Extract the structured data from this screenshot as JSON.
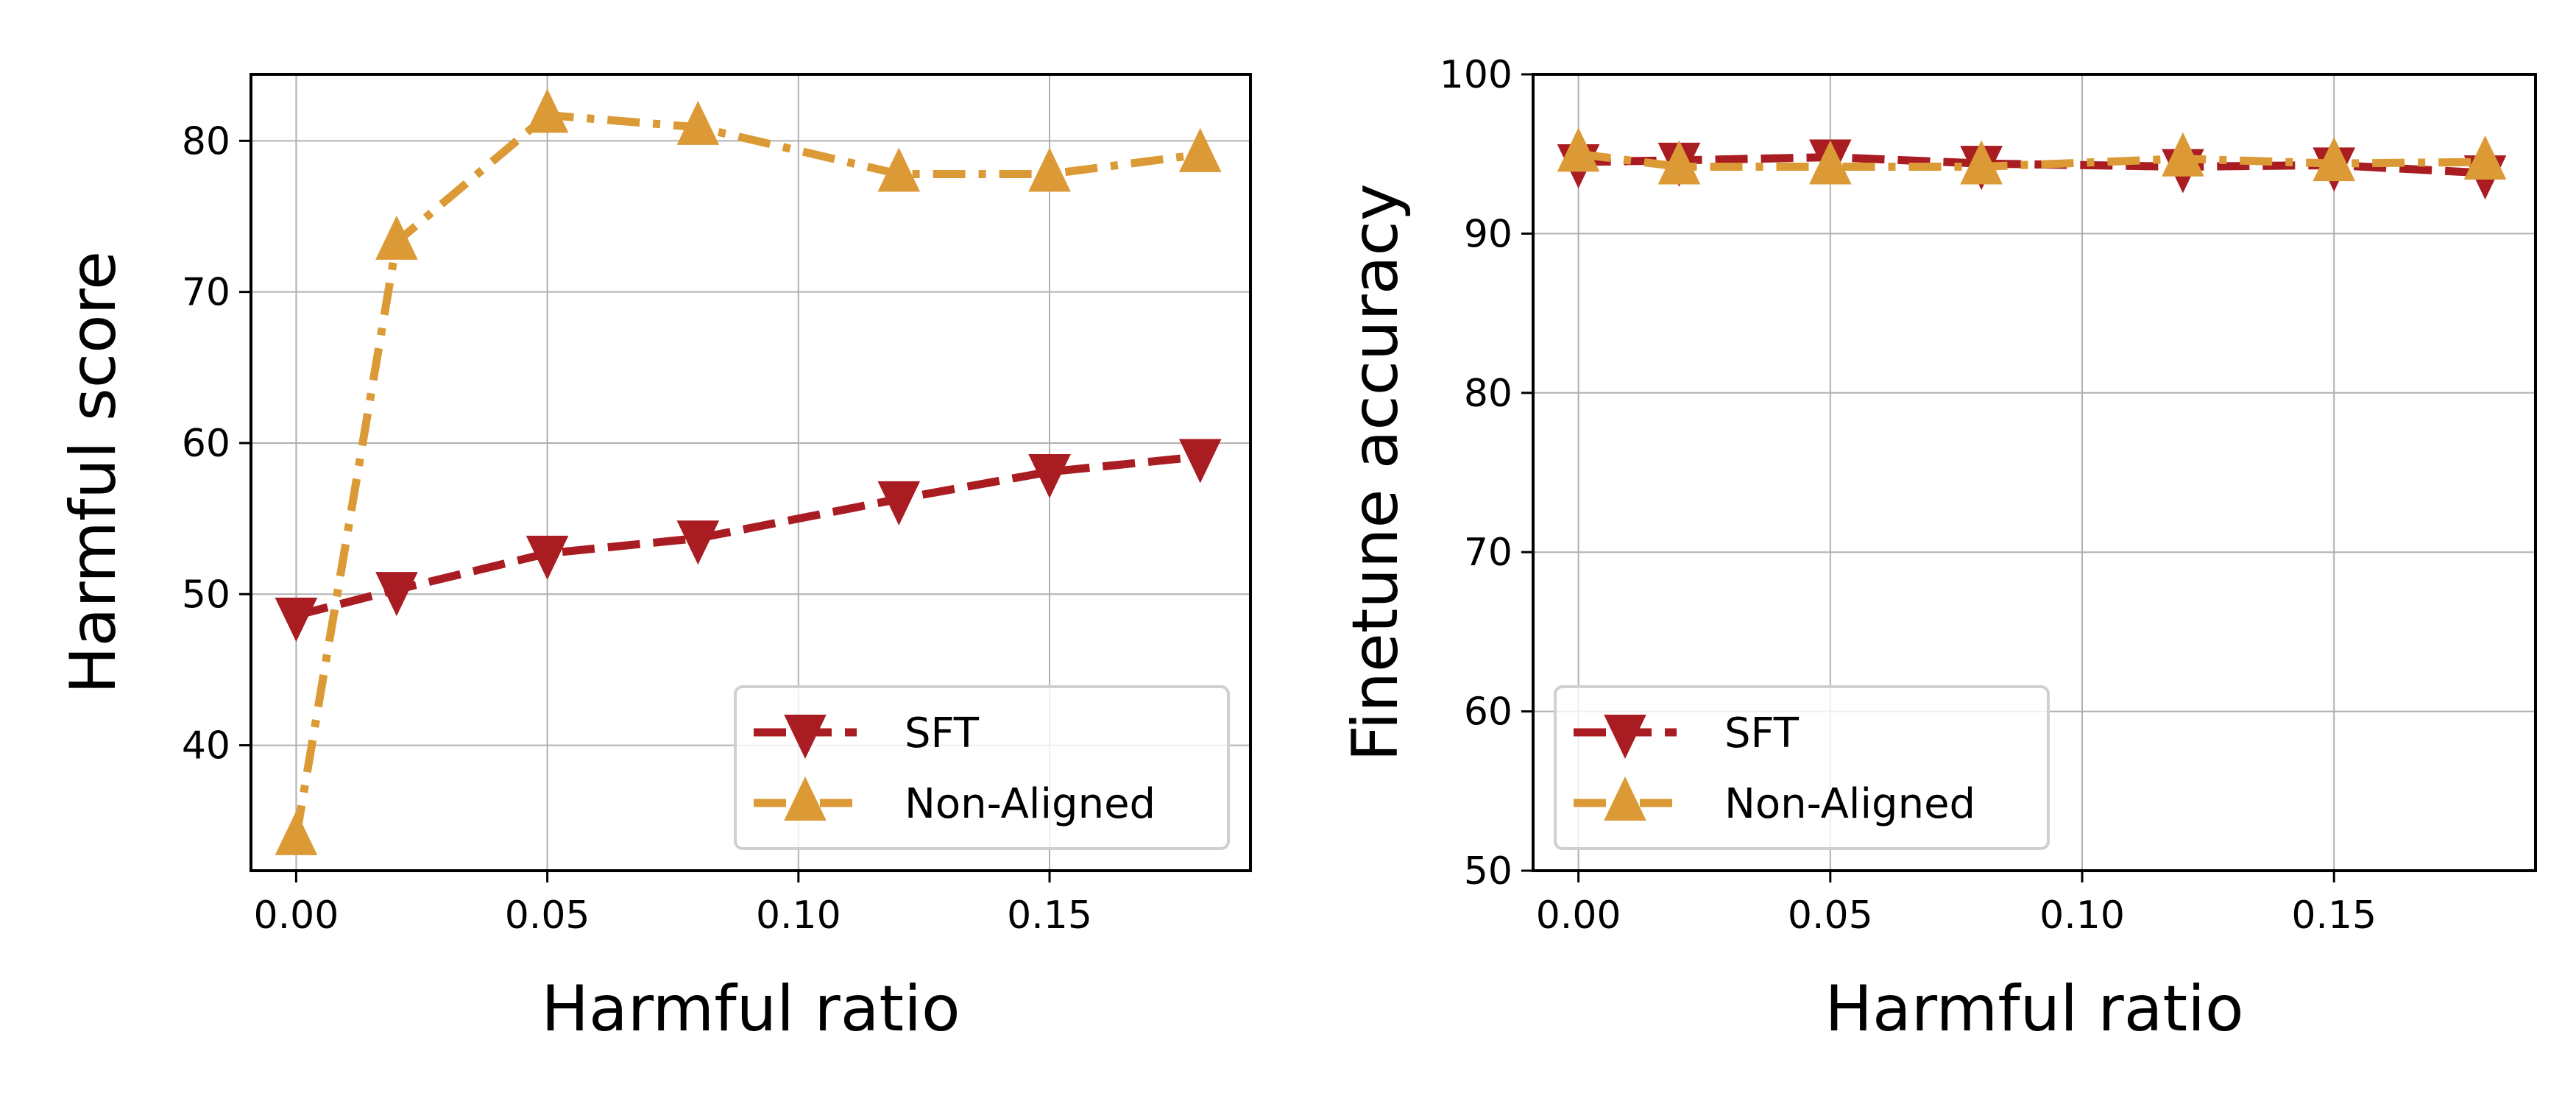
{
  "chart_data": [
    {
      "type": "line",
      "xlabel": "Harmful ratio",
      "ylabel": "Harmful score",
      "xlim": [
        -0.009,
        0.19
      ],
      "ylim": [
        31.7,
        84.4
      ],
      "xticks": [
        "0.00",
        "0.05",
        "0.10",
        "0.15"
      ],
      "yticks": [
        "40",
        "50",
        "60",
        "70",
        "80"
      ],
      "grid": true,
      "legend_position": "lower-right",
      "x": [
        0.0,
        0.02,
        0.05,
        0.08,
        0.12,
        0.15,
        0.18
      ],
      "series": [
        {
          "name": "SFT",
          "values": [
            48.6,
            50.3,
            52.7,
            53.7,
            56.3,
            58.1,
            59.1
          ],
          "color": "#a91c22",
          "marker": "triangle-down",
          "linestyle": "dashed"
        },
        {
          "name": "Non-Aligned",
          "values": [
            33.9,
            73.3,
            81.7,
            80.9,
            77.8,
            77.8,
            79.1
          ],
          "color": "#db9a35",
          "marker": "triangle-up",
          "linestyle": "dashdot"
        }
      ]
    },
    {
      "type": "line",
      "xlabel": "Harmful ratio",
      "ylabel": "Finetune accuracy",
      "xlim": [
        -0.009,
        0.19
      ],
      "ylim": [
        50,
        100
      ],
      "xticks": [
        "0.00",
        "0.05",
        "0.10",
        "0.15"
      ],
      "yticks": [
        "50",
        "60",
        "70",
        "80",
        "90",
        "100"
      ],
      "grid": true,
      "legend_position": "lower-left",
      "x": [
        0.0,
        0.02,
        0.05,
        0.08,
        0.12,
        0.15,
        0.18
      ],
      "series": [
        {
          "name": "SFT",
          "values": [
            94.5,
            94.6,
            94.8,
            94.4,
            94.2,
            94.3,
            93.8
          ],
          "color": "#a91c22",
          "marker": "triangle-down",
          "linestyle": "dashed"
        },
        {
          "name": "Non-Aligned",
          "values": [
            95.0,
            94.2,
            94.2,
            94.2,
            94.7,
            94.4,
            94.5
          ],
          "color": "#db9a35",
          "marker": "triangle-up",
          "linestyle": "dashdot"
        }
      ]
    }
  ]
}
